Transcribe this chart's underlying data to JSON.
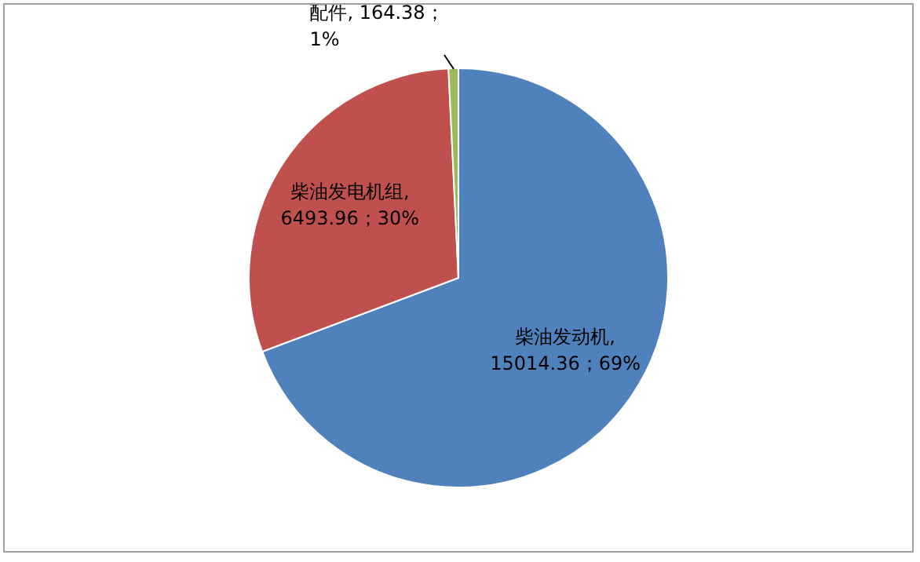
{
  "chart_data": {
    "type": "pie",
    "categories": [
      "柴油发动机",
      "柴油发电机组",
      "配件"
    ],
    "values": [
      15014.36,
      6493.96,
      164.38
    ],
    "colors": [
      "#4f81bd",
      "#c0504d",
      "#9bbb59"
    ],
    "value_labels": [
      ",\n15014.36；69%",
      ",\n6493.96；30%",
      ", 164.38；\n1%"
    ],
    "legend": false
  }
}
